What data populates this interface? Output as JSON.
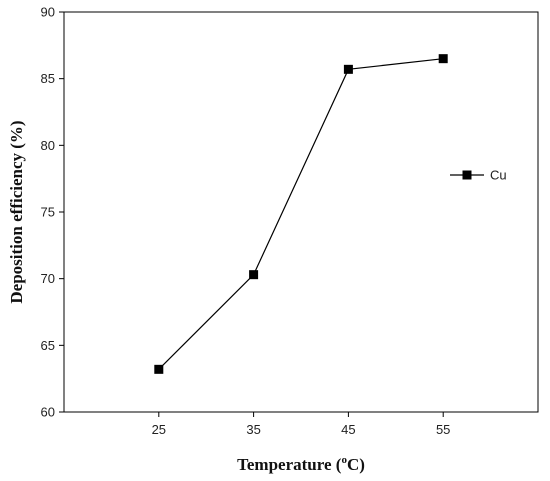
{
  "chart_data": {
    "type": "line",
    "x": [
      25,
      35,
      45,
      55
    ],
    "series": [
      {
        "name": "Cu",
        "values": [
          63.2,
          70.3,
          85.7,
          86.5
        ]
      }
    ],
    "xticks": [
      "25",
      "35",
      "45",
      "55"
    ],
    "yticks": [
      "60",
      "65",
      "70",
      "75",
      "80",
      "85",
      "90"
    ],
    "xlabel": {
      "main": "Temperature (",
      "sup": "o",
      "tail": "C)"
    },
    "ylabel": "Deposition efficiency (%)",
    "xlim": [
      15,
      65
    ],
    "ylim": [
      60,
      90
    ],
    "legend_position": "right",
    "grid": false,
    "colors": {
      "line": "#000000",
      "marker": "#000000"
    }
  }
}
